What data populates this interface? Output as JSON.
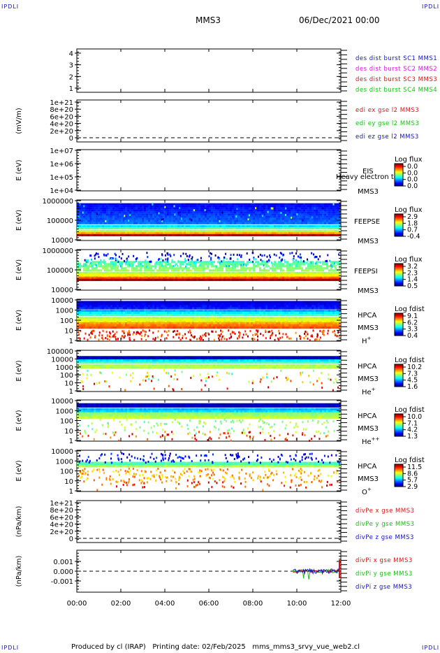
{
  "corner_label": "IPDLI",
  "header": {
    "spacecraft": "MMS3",
    "datetime": "06/Dec/2021 00:00"
  },
  "footer": "Produced by cl (IRAP)   Printing date: 02/Feb/2025   mms_mms3_srvy_vue_web2.cl",
  "chart_data": {
    "type": "heatmap",
    "x_ticks": [
      "00:00",
      "02:00",
      "04:00",
      "06:00",
      "08:00",
      "10:00",
      "12:00"
    ],
    "xlim": [
      "00:00",
      "12:00"
    ],
    "panels": [
      {
        "id": "p1",
        "ylabel": "",
        "yticks": [
          "4",
          "3",
          "2",
          "1"
        ],
        "ylim": [
          0.5,
          4.5
        ],
        "legend": [
          {
            "text": "des dist burst SC1 MMS1",
            "color": "#1010d0"
          },
          {
            "text": "des dist burst SC2 MMS2",
            "color": "#e010e0"
          },
          {
            "text": "des dist burst SC3 MMS3",
            "color": "#e01010"
          },
          {
            "text": "des dist burst SC4 MMS4",
            "color": "#10c010"
          }
        ]
      },
      {
        "id": "p2",
        "ylabel": "(mV/m)",
        "yticks": [
          "1e+21",
          "8e+20",
          "6e+20",
          "4e+20",
          "2e+20",
          "0"
        ],
        "ylim": [
          0,
          1e+21
        ],
        "legend": [
          {
            "text": "edi ex gse l2 MMS3",
            "color": "#e01010"
          },
          {
            "text": "edi ey gse l2 MMS3",
            "color": "#10c010"
          },
          {
            "text": "edi ez gse l2 MMS3",
            "color": "#1010d0"
          }
        ]
      },
      {
        "id": "p3",
        "ylabel": "E (eV)",
        "yticks": [
          "1e+07",
          "1e+06",
          "1e+05",
          "1e+04"
        ],
        "ylim": [
          10000.0,
          10000000.0
        ],
        "log": true,
        "instrument": "EIS",
        "sc": "MMS3",
        "overlay": "Heavy electron to",
        "cbar_title": "Log flux",
        "cbar_ticks": [
          "0.0",
          "0.0",
          "0.0",
          "0.0"
        ]
      },
      {
        "id": "p4",
        "ylabel": "E (eV)",
        "yticks": [
          "1000000",
          "100000",
          "10000"
        ],
        "ylim": [
          10000.0,
          1000000.0
        ],
        "log": true,
        "instrument": "FEEPSE",
        "sc": "MMS3",
        "cbar_title": "Log flux",
        "cbar_ticks": [
          "2.9",
          "1.8",
          "0.7",
          "-0.4"
        ]
      },
      {
        "id": "p5",
        "ylabel": "E (eV)",
        "yticks": [
          "1000000",
          "100000",
          "10000"
        ],
        "ylim": [
          10000.0,
          1000000.0
        ],
        "log": true,
        "instrument": "FEEPSI",
        "sc": "MMS3",
        "cbar_title": "Log flux",
        "cbar_ticks": [
          "3.2",
          "2.3",
          "1.4",
          "0.5"
        ]
      },
      {
        "id": "p6",
        "ylabel": "E (eV)",
        "yticks": [
          "10000",
          "1000",
          "100",
          "10",
          "1"
        ],
        "ylim": [
          1,
          30000
        ],
        "log": true,
        "instrument": "HPCA",
        "sc": "MMS3",
        "species": "H",
        "sup": "+",
        "cbar_title": "Log fdist",
        "cbar_ticks": [
          "9.1",
          "6.2",
          "3.3",
          "0.4"
        ]
      },
      {
        "id": "p7",
        "ylabel": "E (eV)",
        "yticks": [
          "100000",
          "10000",
          "1000",
          "100",
          "10",
          "1"
        ],
        "ylim": [
          1,
          100000
        ],
        "log": true,
        "instrument": "HPCA",
        "sc": "MMS3",
        "species": "He",
        "sup": "+",
        "cbar_title": "Log fdist",
        "cbar_ticks": [
          "10.2",
          "7.3",
          "4.5",
          "1.6"
        ]
      },
      {
        "id": "p8",
        "ylabel": "E (eV)",
        "yticks": [
          "10000",
          "1000",
          "100",
          "10",
          "1"
        ],
        "ylim": [
          1,
          30000
        ],
        "log": true,
        "instrument": "HPCA",
        "sc": "MMS3",
        "species": "He",
        "sup": "++",
        "cbar_title": "Log fdist",
        "cbar_ticks": [
          "10.0",
          "7.1",
          "4.2",
          "1.3"
        ]
      },
      {
        "id": "p9",
        "ylabel": "E (eV)",
        "yticks": [
          "10000",
          "1000",
          "100",
          "10",
          "1"
        ],
        "ylim": [
          1,
          30000
        ],
        "log": true,
        "instrument": "HPCA",
        "sc": "MMS3",
        "species": "O",
        "sup": "+",
        "cbar_title": "Log fdist",
        "cbar_ticks": [
          "11.5",
          "8.6",
          "5.7",
          "2.9"
        ]
      },
      {
        "id": "p10",
        "ylabel": "(nPa/km)",
        "yticks": [
          "1e+21",
          "8e+20",
          "6e+20",
          "4e+20",
          "2e+20",
          "0"
        ],
        "ylim": [
          0,
          1e+21
        ],
        "legend": [
          {
            "text": "divPe x gse MMS3",
            "color": "#e01010"
          },
          {
            "text": "divPe y gse MMS3",
            "color": "#10c010"
          },
          {
            "text": "divPe z gse MMS3",
            "color": "#1010d0"
          }
        ]
      },
      {
        "id": "p11",
        "ylabel": "(nPa/km)",
        "yticks": [
          "0.001",
          "0.000",
          "-0.001"
        ],
        "ylim": [
          -0.0015,
          0.0015
        ],
        "legend": [
          {
            "text": "divPi x gse MMS3",
            "color": "#e01010"
          },
          {
            "text": "divPi y gse MMS3",
            "color": "#10c010"
          },
          {
            "text": "divPi z gse MMS3",
            "color": "#1010d0"
          }
        ],
        "series_note": "data only from ~09:50 to 12:00, near zero with spikes to ~0.0005"
      }
    ]
  }
}
